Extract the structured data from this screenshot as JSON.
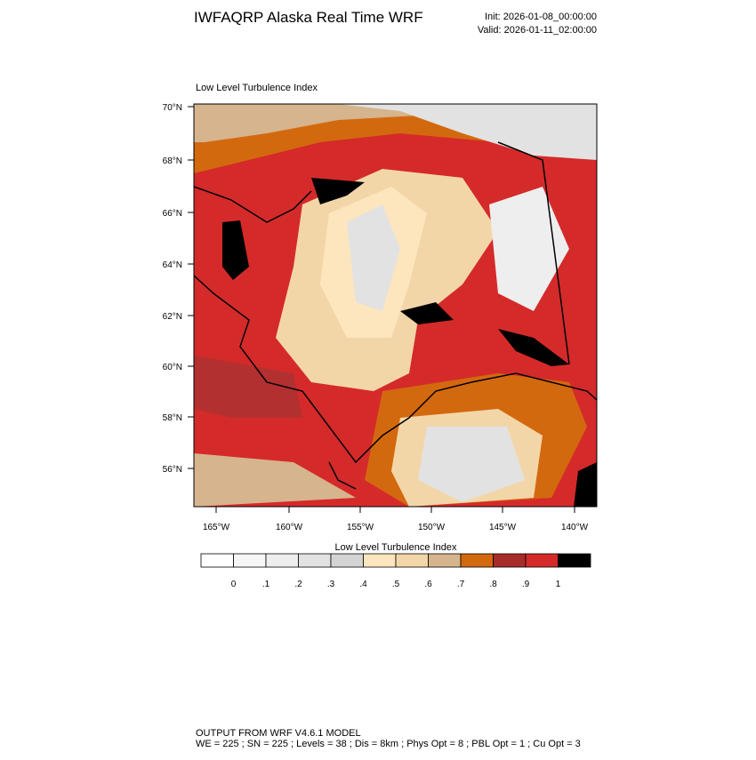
{
  "header": {
    "title": "IWFAQRP Alaska Real Time WRF",
    "init": "Init: 2026-01-08_00:00:00",
    "valid": "Valid: 2026-01-11_02:00:00"
  },
  "map": {
    "subtitle": "Low Level Turbulence Index",
    "lat_labels": [
      "70°N",
      "68°N",
      "66°N",
      "64°N",
      "62°N",
      "60°N",
      "58°N",
      "56°N"
    ],
    "lon_labels": [
      "165°W",
      "160°W",
      "155°W",
      "150°W",
      "145°W",
      "140°W"
    ]
  },
  "colorbar": {
    "title": "Low Level Turbulence Index",
    "colors": [
      "#ffffff",
      "#f6f6f6",
      "#eeeeee",
      "#e2e2e2",
      "#d4d4d4",
      "#fde6bd",
      "#f3d6a8",
      "#d6b48d",
      "#d3690f",
      "#a82b2b",
      "#d52a2a",
      "#000000"
    ],
    "labels": [
      "0",
      ".1",
      ".2",
      ".3",
      ".4",
      ".5",
      ".6",
      ".7",
      ".8",
      ".9",
      "1"
    ]
  },
  "footer": {
    "line1": "OUTPUT FROM WRF V4.6.1 MODEL",
    "line2": "WE = 225 ; SN = 225 ; Levels = 38 ; Dis = 8km ; Phys Opt = 8 ; PBL Opt = 1 ; Cu Opt = 3"
  }
}
